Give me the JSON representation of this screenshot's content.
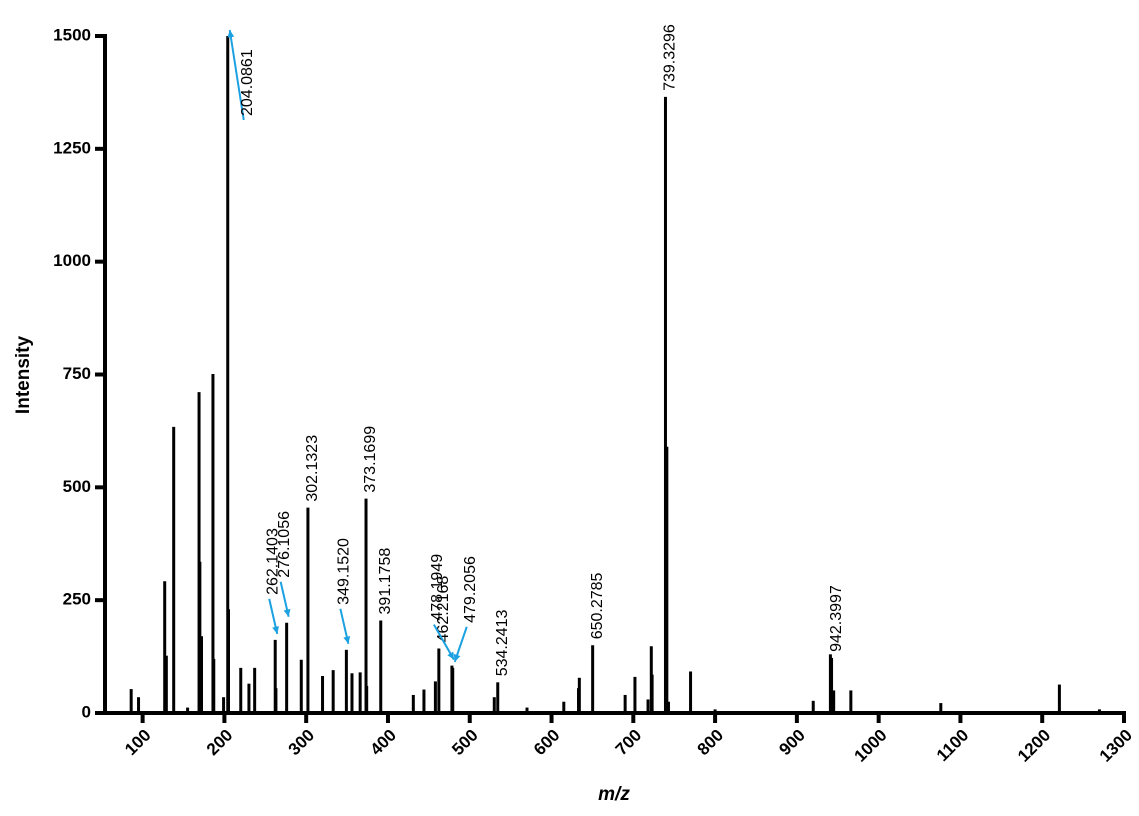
{
  "chart_data": {
    "type": "stem",
    "x_label": "m/z",
    "y_label": "Intensity",
    "color": "#000000",
    "arrow_color": "#1ba1e2",
    "xlim": [
      54,
      1300
    ],
    "ylim": [
      0,
      1500
    ],
    "xticks": [
      100,
      200,
      300,
      400,
      500,
      600,
      700,
      800,
      900,
      1000,
      1100,
      1200,
      1300
    ],
    "yticks": [
      0,
      250,
      500,
      750,
      1000,
      1250,
      1500
    ],
    "x": [
      86,
      95,
      127,
      129,
      138,
      155,
      169,
      170,
      172,
      186,
      187,
      199,
      204.0861,
      205,
      220,
      230,
      237,
      262.1403,
      263,
      276.1056,
      294,
      302.1323,
      320,
      333,
      349.152,
      356,
      366,
      373.1699,
      374,
      391.1758,
      431,
      444,
      458,
      462.2168,
      478.1949,
      479.2056,
      530,
      534.2413,
      570,
      615,
      633,
      634,
      650.2785,
      690,
      702,
      718,
      722,
      723,
      739.3296,
      741,
      743,
      770,
      800,
      920,
      941,
      942.3997,
      945,
      966,
      1076,
      1221,
      1270
    ],
    "values": [
      53,
      35,
      292,
      127,
      634,
      12,
      711,
      335,
      170,
      751,
      120,
      35,
      1500,
      230,
      100,
      65,
      100,
      162,
      55,
      200,
      118,
      455,
      82,
      95,
      140,
      88,
      90,
      475,
      60,
      205,
      40,
      52,
      70,
      143,
      105,
      100,
      35,
      68,
      12,
      25,
      55,
      78,
      150,
      40,
      80,
      30,
      148,
      85,
      1365,
      590,
      25,
      92,
      8,
      27,
      130,
      122,
      50,
      50,
      22,
      63,
      8
    ],
    "annotations": [
      {
        "label": "204.0861",
        "x": 204.0861,
        "arrow": true
      },
      {
        "label": "262.1403",
        "x": 262.1403,
        "arrow": true
      },
      {
        "label": "276.1056",
        "x": 276.1056,
        "arrow": true
      },
      {
        "label": "302.1323",
        "x": 302.1323,
        "arrow": false
      },
      {
        "label": "349.1520",
        "x": 349.152,
        "arrow": true
      },
      {
        "label": "373.1699",
        "x": 373.1699,
        "arrow": false
      },
      {
        "label": "391.1758",
        "x": 391.1758,
        "arrow": false
      },
      {
        "label": "462.2168",
        "x": 462.2168,
        "arrow": false
      },
      {
        "label": "478.1949",
        "x": 478.1949,
        "arrow": true
      },
      {
        "label": "479.2056",
        "x": 479.2056,
        "arrow": true
      },
      {
        "label": "534.2413",
        "x": 534.2413,
        "arrow": false
      },
      {
        "label": "650.2785",
        "x": 650.2785,
        "arrow": false
      },
      {
        "label": "739.3296",
        "x": 739.3296,
        "arrow": false
      },
      {
        "label": "942.3997",
        "x": 942.3997,
        "arrow": false
      }
    ]
  }
}
